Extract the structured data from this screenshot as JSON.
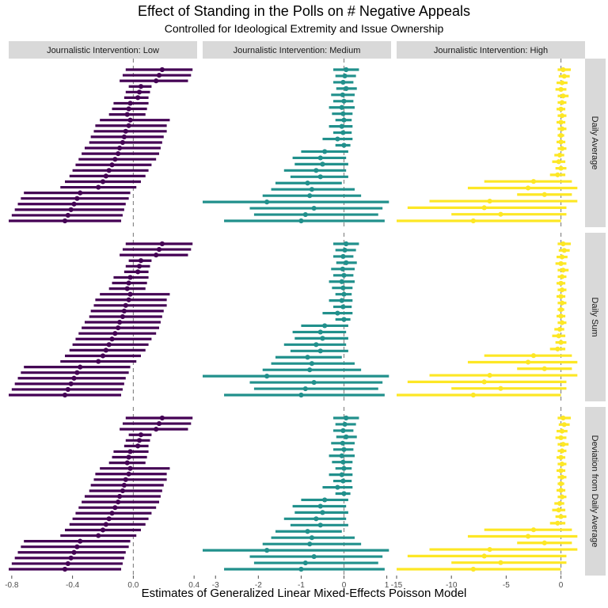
{
  "chart_data": {
    "type": "forest",
    "title": "Effect of Standing in the Polls on # Negative Appeals",
    "subtitle": "Controlled for Ideological Extremity and Issue Ownership",
    "xlabel": "Estimates of Generalized Linear Mixed-Effects Poisson Model",
    "columns": [
      {
        "label": "Journalistic Intervention: Low",
        "color": "#440154",
        "xlim": [
          -0.82,
          0.42
        ],
        "ticks": [
          -0.8,
          -0.4,
          0.0,
          0.4
        ],
        "tick_labels": [
          "-0.8",
          "-0.4",
          "0.0",
          "0.4"
        ]
      },
      {
        "label": "Journalistic Intervention: Medium",
        "color": "#21908C",
        "xlim": [
          -3.3,
          1.1
        ],
        "ticks": [
          -3,
          -2,
          -1,
          0,
          1
        ],
        "tick_labels": [
          "-3",
          "-2",
          "-1",
          "0",
          "1"
        ]
      },
      {
        "label": "Journalistic Intervention: High",
        "color": "#FDE725",
        "xlim": [
          -15,
          2.2
        ],
        "ticks": [
          -15,
          -10,
          -5,
          0
        ],
        "tick_labels": [
          "-15",
          "-10",
          "-5",
          "0"
        ]
      }
    ],
    "rows": [
      {
        "label": "Daily Average"
      },
      {
        "label": "Daily Sum"
      },
      {
        "label": "Deviation from Daily Average"
      }
    ],
    "estimates": [
      [
        {
          "est": 0.19,
          "lo": -0.05,
          "hi": 0.39
        },
        {
          "est": 0.17,
          "lo": -0.07,
          "hi": 0.38
        },
        {
          "est": 0.15,
          "lo": -0.09,
          "hi": 0.36
        },
        {
          "est": 0.05,
          "lo": -0.03,
          "hi": 0.12
        },
        {
          "est": 0.04,
          "lo": -0.05,
          "hi": 0.11
        },
        {
          "est": 0.03,
          "lo": -0.06,
          "hi": 0.1
        },
        {
          "est": -0.02,
          "lo": -0.13,
          "hi": 0.1
        },
        {
          "est": -0.03,
          "lo": -0.14,
          "hi": 0.09
        },
        {
          "est": -0.04,
          "lo": -0.16,
          "hi": 0.08
        },
        {
          "est": -0.02,
          "lo": -0.22,
          "hi": 0.24
        },
        {
          "est": -0.03,
          "lo": -0.25,
          "hi": 0.22
        },
        {
          "est": -0.05,
          "lo": -0.26,
          "hi": 0.22
        },
        {
          "est": -0.06,
          "lo": -0.28,
          "hi": 0.2
        },
        {
          "est": -0.07,
          "lo": -0.29,
          "hi": 0.19
        },
        {
          "est": -0.09,
          "lo": -0.32,
          "hi": 0.18
        },
        {
          "est": -0.1,
          "lo": -0.34,
          "hi": 0.17
        },
        {
          "est": -0.12,
          "lo": -0.36,
          "hi": 0.15
        },
        {
          "est": -0.14,
          "lo": -0.38,
          "hi": 0.12
        },
        {
          "est": -0.16,
          "lo": -0.4,
          "hi": 0.1
        },
        {
          "est": -0.18,
          "lo": -0.42,
          "hi": 0.08
        },
        {
          "est": -0.2,
          "lo": -0.45,
          "hi": 0.05
        },
        {
          "est": -0.23,
          "lo": -0.48,
          "hi": 0.02
        },
        {
          "est": -0.35,
          "lo": -0.72,
          "hi": -0.02
        },
        {
          "est": -0.37,
          "lo": -0.74,
          "hi": -0.03
        },
        {
          "est": -0.39,
          "lo": -0.76,
          "hi": -0.05
        },
        {
          "est": -0.41,
          "lo": -0.78,
          "hi": -0.06
        },
        {
          "est": -0.43,
          "lo": -0.8,
          "hi": -0.07
        },
        {
          "est": -0.45,
          "lo": -0.82,
          "hi": -0.08
        }
      ],
      [
        {
          "est": 0.05,
          "lo": -0.25,
          "hi": 0.35
        },
        {
          "est": 0.02,
          "lo": -0.2,
          "hi": 0.28
        },
        {
          "est": -0.02,
          "lo": -0.25,
          "hi": 0.22
        },
        {
          "est": 0.05,
          "lo": -0.18,
          "hi": 0.3
        },
        {
          "est": -0.03,
          "lo": -0.3,
          "hi": 0.25
        },
        {
          "est": 0.0,
          "lo": -0.25,
          "hi": 0.22
        },
        {
          "est": -0.05,
          "lo": -0.35,
          "hi": 0.25
        },
        {
          "est": -0.02,
          "lo": -0.28,
          "hi": 0.2
        },
        {
          "est": 0.0,
          "lo": -0.2,
          "hi": 0.18
        },
        {
          "est": -0.05,
          "lo": -0.35,
          "hi": 0.2
        },
        {
          "est": -0.02,
          "lo": -0.25,
          "hi": 0.18
        },
        {
          "est": -0.15,
          "lo": -0.5,
          "hi": 0.2
        },
        {
          "est": 0.0,
          "lo": -0.2,
          "hi": 0.15
        },
        {
          "est": -0.45,
          "lo": -1.0,
          "hi": 0.1
        },
        {
          "est": -0.55,
          "lo": -1.2,
          "hi": 0.05
        },
        {
          "est": -0.5,
          "lo": -1.15,
          "hi": 0.1
        },
        {
          "est": -0.65,
          "lo": -1.4,
          "hi": 0.05
        },
        {
          "est": -0.55,
          "lo": -1.25,
          "hi": 0.1
        },
        {
          "est": -0.85,
          "lo": -1.6,
          "hi": -0.05
        },
        {
          "est": -0.75,
          "lo": -1.7,
          "hi": 0.25
        },
        {
          "est": -0.8,
          "lo": -1.9,
          "hi": 0.4
        },
        {
          "est": -1.8,
          "lo": -3.3,
          "hi": 1.05
        },
        {
          "est": -0.7,
          "lo": -2.2,
          "hi": 0.9
        },
        {
          "est": -0.9,
          "lo": -2.1,
          "hi": 0.8
        },
        {
          "est": -1.0,
          "lo": -2.8,
          "hi": 0.95
        }
      ],
      [
        {
          "est": 0.2,
          "lo": -0.3,
          "hi": 0.9
        },
        {
          "est": 0.3,
          "lo": -0.2,
          "hi": 0.8
        },
        {
          "est": 0.1,
          "lo": -0.4,
          "hi": 0.6
        },
        {
          "est": 0.0,
          "lo": -0.5,
          "hi": 0.5
        },
        {
          "est": 0.2,
          "lo": -0.3,
          "hi": 0.7
        },
        {
          "est": 0.1,
          "lo": -0.3,
          "hi": 0.5
        },
        {
          "est": 0.0,
          "lo": -0.4,
          "hi": 0.4
        },
        {
          "est": 0.1,
          "lo": -0.3,
          "hi": 0.5
        },
        {
          "est": 0.0,
          "lo": -0.4,
          "hi": 0.4
        },
        {
          "est": 0.1,
          "lo": -0.3,
          "hi": 0.5
        },
        {
          "est": 0.0,
          "lo": -0.3,
          "hi": 0.3
        },
        {
          "est": 0.0,
          "lo": -0.4,
          "hi": 0.4
        },
        {
          "est": 0.1,
          "lo": -0.3,
          "hi": 0.5
        },
        {
          "est": -0.1,
          "lo": -0.6,
          "hi": 0.3
        },
        {
          "est": -0.2,
          "lo": -0.8,
          "hi": 0.4
        },
        {
          "est": 0.0,
          "lo": -0.5,
          "hi": 0.5
        },
        {
          "est": -0.3,
          "lo": -1.0,
          "hi": 0.4
        },
        {
          "est": -2.5,
          "lo": -7.0,
          "hi": 1.0
        },
        {
          "est": -3.0,
          "lo": -8.5,
          "hi": 1.5
        },
        {
          "est": -1.5,
          "lo": -4.0,
          "hi": 1.0
        },
        {
          "est": -6.5,
          "lo": -12.0,
          "hi": 1.5
        },
        {
          "est": -7.0,
          "lo": -14.0,
          "hi": 0.5
        },
        {
          "est": -5.5,
          "lo": -10.0,
          "hi": 0.5
        },
        {
          "est": -8.0,
          "lo": -15.0,
          "hi": 0.0
        }
      ]
    ]
  }
}
